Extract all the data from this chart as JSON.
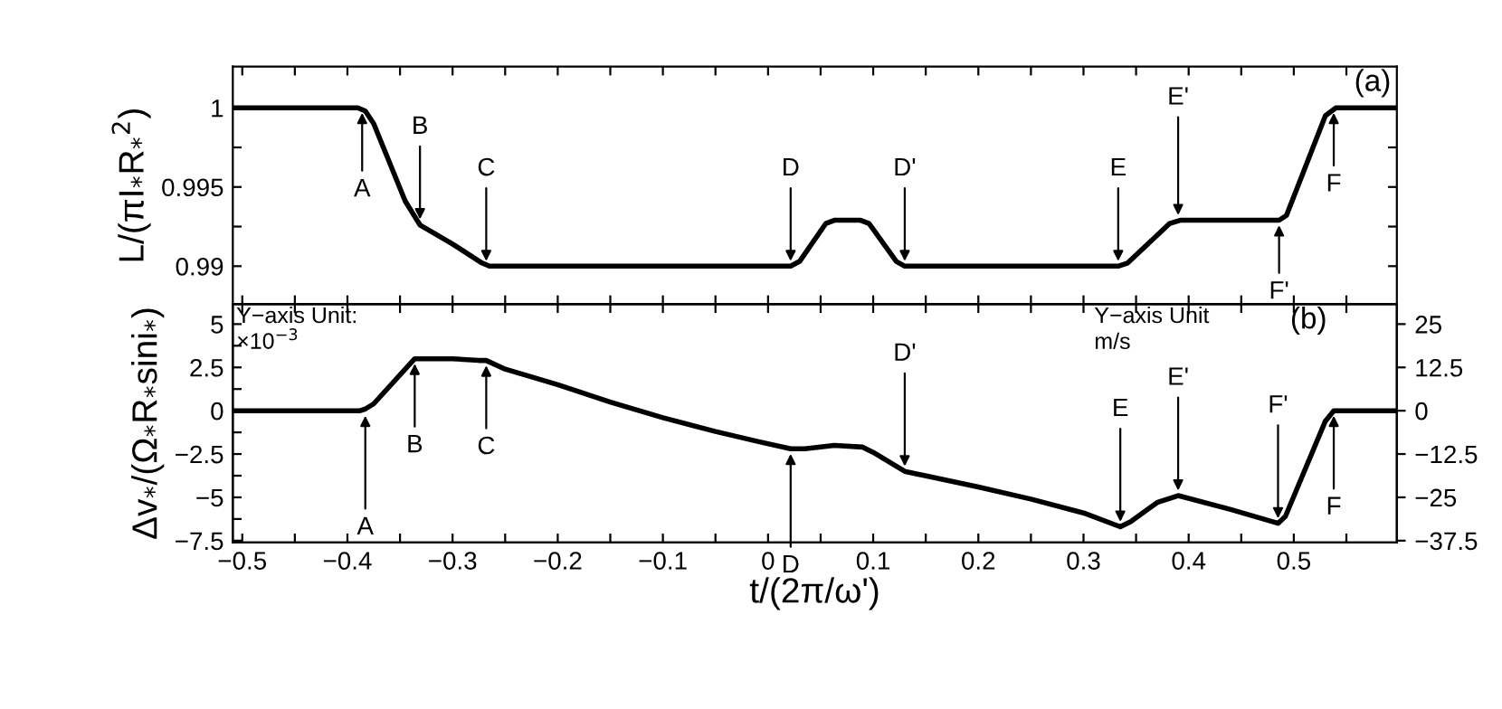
{
  "chart_data": [
    {
      "type": "line",
      "ylabel": "L/(πI$_{*}$R$_{*}$$^{2}$)",
      "tick_labels": "y",
      "grid": false,
      "line_style": "solid",
      "marker": "none",
      "xlim": [
        -0.509,
        0.598
      ],
      "ylim": [
        0.9876,
        1.0026
      ],
      "xticks": [
        {
          "value": -0.5,
          "label": null
        },
        {
          "value": -0.45,
          "label": null
        },
        {
          "value": -0.4,
          "label": null
        },
        {
          "value": -0.35,
          "label": null
        },
        {
          "value": -0.3,
          "label": null
        },
        {
          "value": -0.25,
          "label": null
        },
        {
          "value": -0.2,
          "label": null
        },
        {
          "value": -0.15,
          "label": null
        },
        {
          "value": -0.1,
          "label": null
        },
        {
          "value": -0.05,
          "label": null
        },
        {
          "value": 0,
          "label": null
        },
        {
          "value": 0.05,
          "label": null
        },
        {
          "value": 0.1,
          "label": null
        },
        {
          "value": 0.15,
          "label": null
        },
        {
          "value": 0.2,
          "label": null
        },
        {
          "value": 0.25,
          "label": null
        },
        {
          "value": 0.3,
          "label": null
        },
        {
          "value": 0.35,
          "label": null
        },
        {
          "value": 0.4,
          "label": null
        },
        {
          "value": 0.45,
          "label": null
        },
        {
          "value": 0.5,
          "label": null
        },
        {
          "value": 0.55,
          "label": null
        }
      ],
      "yticks": [
        {
          "value": 0.99,
          "label": "0.99"
        },
        {
          "value": 0.9925,
          "label": null
        },
        {
          "value": 0.995,
          "label": "0.995"
        },
        {
          "value": 0.9975,
          "label": null
        },
        {
          "value": 1,
          "label": "1"
        }
      ],
      "series": [
        {
          "color": "#000000",
          "x": [
            -0.509,
            -0.39,
            -0.383,
            -0.375,
            -0.345,
            -0.331,
            -0.3,
            -0.272,
            -0.265,
            0.0215,
            0.03,
            0.055,
            0.063,
            0.088,
            0.096,
            0.122,
            0.13,
            0.333,
            0.342,
            0.382,
            0.392,
            0.486,
            0.493,
            0.53,
            0.54,
            0.598
          ],
          "values": [
            1,
            1,
            0.9998,
            0.999,
            0.9941,
            0.9926,
            0.9914,
            0.9902,
            0.99,
            0.99,
            0.9903,
            0.9927,
            0.9929,
            0.9929,
            0.9927,
            0.9903,
            0.99,
            0.99,
            0.9902,
            0.9927,
            0.9929,
            0.9929,
            0.9932,
            0.9995,
            1,
            1
          ]
        }
      ],
      "annotations": [
        "(a)",
        {
          "text": "A",
          "x": -0.386,
          "y": 1
        },
        {
          "text": "B",
          "x": -0.331,
          "y": 0.99264
        },
        {
          "text": "C",
          "x": -0.268,
          "y": 0.99
        },
        {
          "text": "D",
          "x": 0.0215,
          "y": 0.99
        },
        {
          "text": "D'",
          "x": 0.13,
          "y": 0.99
        },
        {
          "text": "E",
          "x": 0.333,
          "y": 0.99
        },
        {
          "text": "E'",
          "x": 0.39,
          "y": 0.9929
        },
        {
          "text": "F'",
          "x": 0.486,
          "y": 0.9929
        },
        {
          "text": "F",
          "x": 0.538,
          "y": 1
        }
      ]
    },
    {
      "type": "line",
      "ylabel": "Δv$_{*}$/(Ω$_{*}$R$_{*}$sini$_{*}$)",
      "xlabel": "t/(2π/ω')",
      "grid": false,
      "line_style": "solid",
      "marker": "none",
      "xlim": [
        -0.509,
        0.598
      ],
      "ylim": [
        -7.6,
        6.15
      ],
      "y2lim": [
        -38,
        30.75
      ],
      "xticks": [
        {
          "value": -0.5,
          "label": "−0.5"
        },
        {
          "value": -0.45,
          "label": null
        },
        {
          "value": -0.4,
          "label": "−0.4"
        },
        {
          "value": -0.35,
          "label": null
        },
        {
          "value": -0.3,
          "label": "−0.3"
        },
        {
          "value": -0.25,
          "label": null
        },
        {
          "value": -0.2,
          "label": "−0.2"
        },
        {
          "value": -0.15,
          "label": null
        },
        {
          "value": -0.1,
          "label": "−0.1"
        },
        {
          "value": -0.05,
          "label": null
        },
        {
          "value": 0,
          "label": "0"
        },
        {
          "value": 0.05,
          "label": null
        },
        {
          "value": 0.1,
          "label": "0.1"
        },
        {
          "value": 0.15,
          "label": null
        },
        {
          "value": 0.2,
          "label": "0.2"
        },
        {
          "value": 0.25,
          "label": null
        },
        {
          "value": 0.3,
          "label": "0.3"
        },
        {
          "value": 0.35,
          "label": null
        },
        {
          "value": 0.4,
          "label": "0.4"
        },
        {
          "value": 0.45,
          "label": null
        },
        {
          "value": 0.5,
          "label": "0.5"
        },
        {
          "value": 0.55,
          "label": null
        }
      ],
      "yticks": [
        {
          "value": -7.5,
          "label": "−7.5"
        },
        {
          "value": -6.25,
          "label": null
        },
        {
          "value": -5,
          "label": "−5"
        },
        {
          "value": -3.75,
          "label": null
        },
        {
          "value": -2.5,
          "label": "−2.5"
        },
        {
          "value": -1.25,
          "label": null
        },
        {
          "value": 0,
          "label": "0"
        },
        {
          "value": 1.25,
          "label": null
        },
        {
          "value": 2.5,
          "label": "2.5"
        },
        {
          "value": 3.75,
          "label": null
        },
        {
          "value": 5,
          "label": "5"
        }
      ],
      "y2ticks": [
        {
          "value": -37.5,
          "label": "−37.5"
        },
        {
          "value": -25,
          "label": "−25"
        },
        {
          "value": -12.5,
          "label": "−12.5"
        },
        {
          "value": 0,
          "label": "0"
        },
        {
          "value": 12.5,
          "label": "12.5"
        },
        {
          "value": 25,
          "label": "25"
        }
      ],
      "series": [
        {
          "color": "#000000",
          "x": [
            -0.509,
            -0.388,
            -0.383,
            -0.375,
            -0.345,
            -0.336,
            -0.3,
            -0.275,
            -0.268,
            -0.25,
            -0.2,
            -0.15,
            -0.1,
            -0.05,
            -0.008,
            0.0215,
            0.035,
            0.063,
            0.09,
            0.1,
            0.13,
            0.2,
            0.25,
            0.3,
            0.335,
            0.345,
            0.37,
            0.39,
            0.44,
            0.485,
            0.492,
            0.53,
            0.538,
            0.598
          ],
          "values": [
            0,
            0,
            0.1,
            0.4,
            2.4,
            3.0,
            3.0,
            2.9,
            2.9,
            2.4,
            1.5,
            0.5,
            -0.4,
            -1.2,
            -1.8,
            -2.2,
            -2.2,
            -2.0,
            -2.1,
            -2.4,
            -3.5,
            -4.4,
            -5.1,
            -5.9,
            -6.7,
            -6.4,
            -5.3,
            -4.9,
            -5.7,
            -6.5,
            -6.1,
            -0.6,
            0,
            0
          ]
        }
      ],
      "annotations": [
        "(b)",
        "Y−axis Unit:\n×10$^{−3}$",
        "Y−axis Unit\nm/s",
        {
          "text": "A",
          "x": -0.383,
          "y": 0
        },
        {
          "text": "B",
          "x": -0.336,
          "y": 3.0
        },
        {
          "text": "C",
          "x": -0.268,
          "y": 2.9
        },
        {
          "text": "D",
          "x": 0.0215,
          "y": -2.2
        },
        {
          "text": "D'",
          "x": 0.13,
          "y": -3.5
        },
        {
          "text": "E",
          "x": 0.335,
          "y": -6.7
        },
        {
          "text": "E'",
          "x": 0.39,
          "y": -4.9
        },
        {
          "text": "F'",
          "x": 0.485,
          "y": -6.5
        },
        {
          "text": "F",
          "x": 0.538,
          "y": 0
        }
      ]
    }
  ]
}
